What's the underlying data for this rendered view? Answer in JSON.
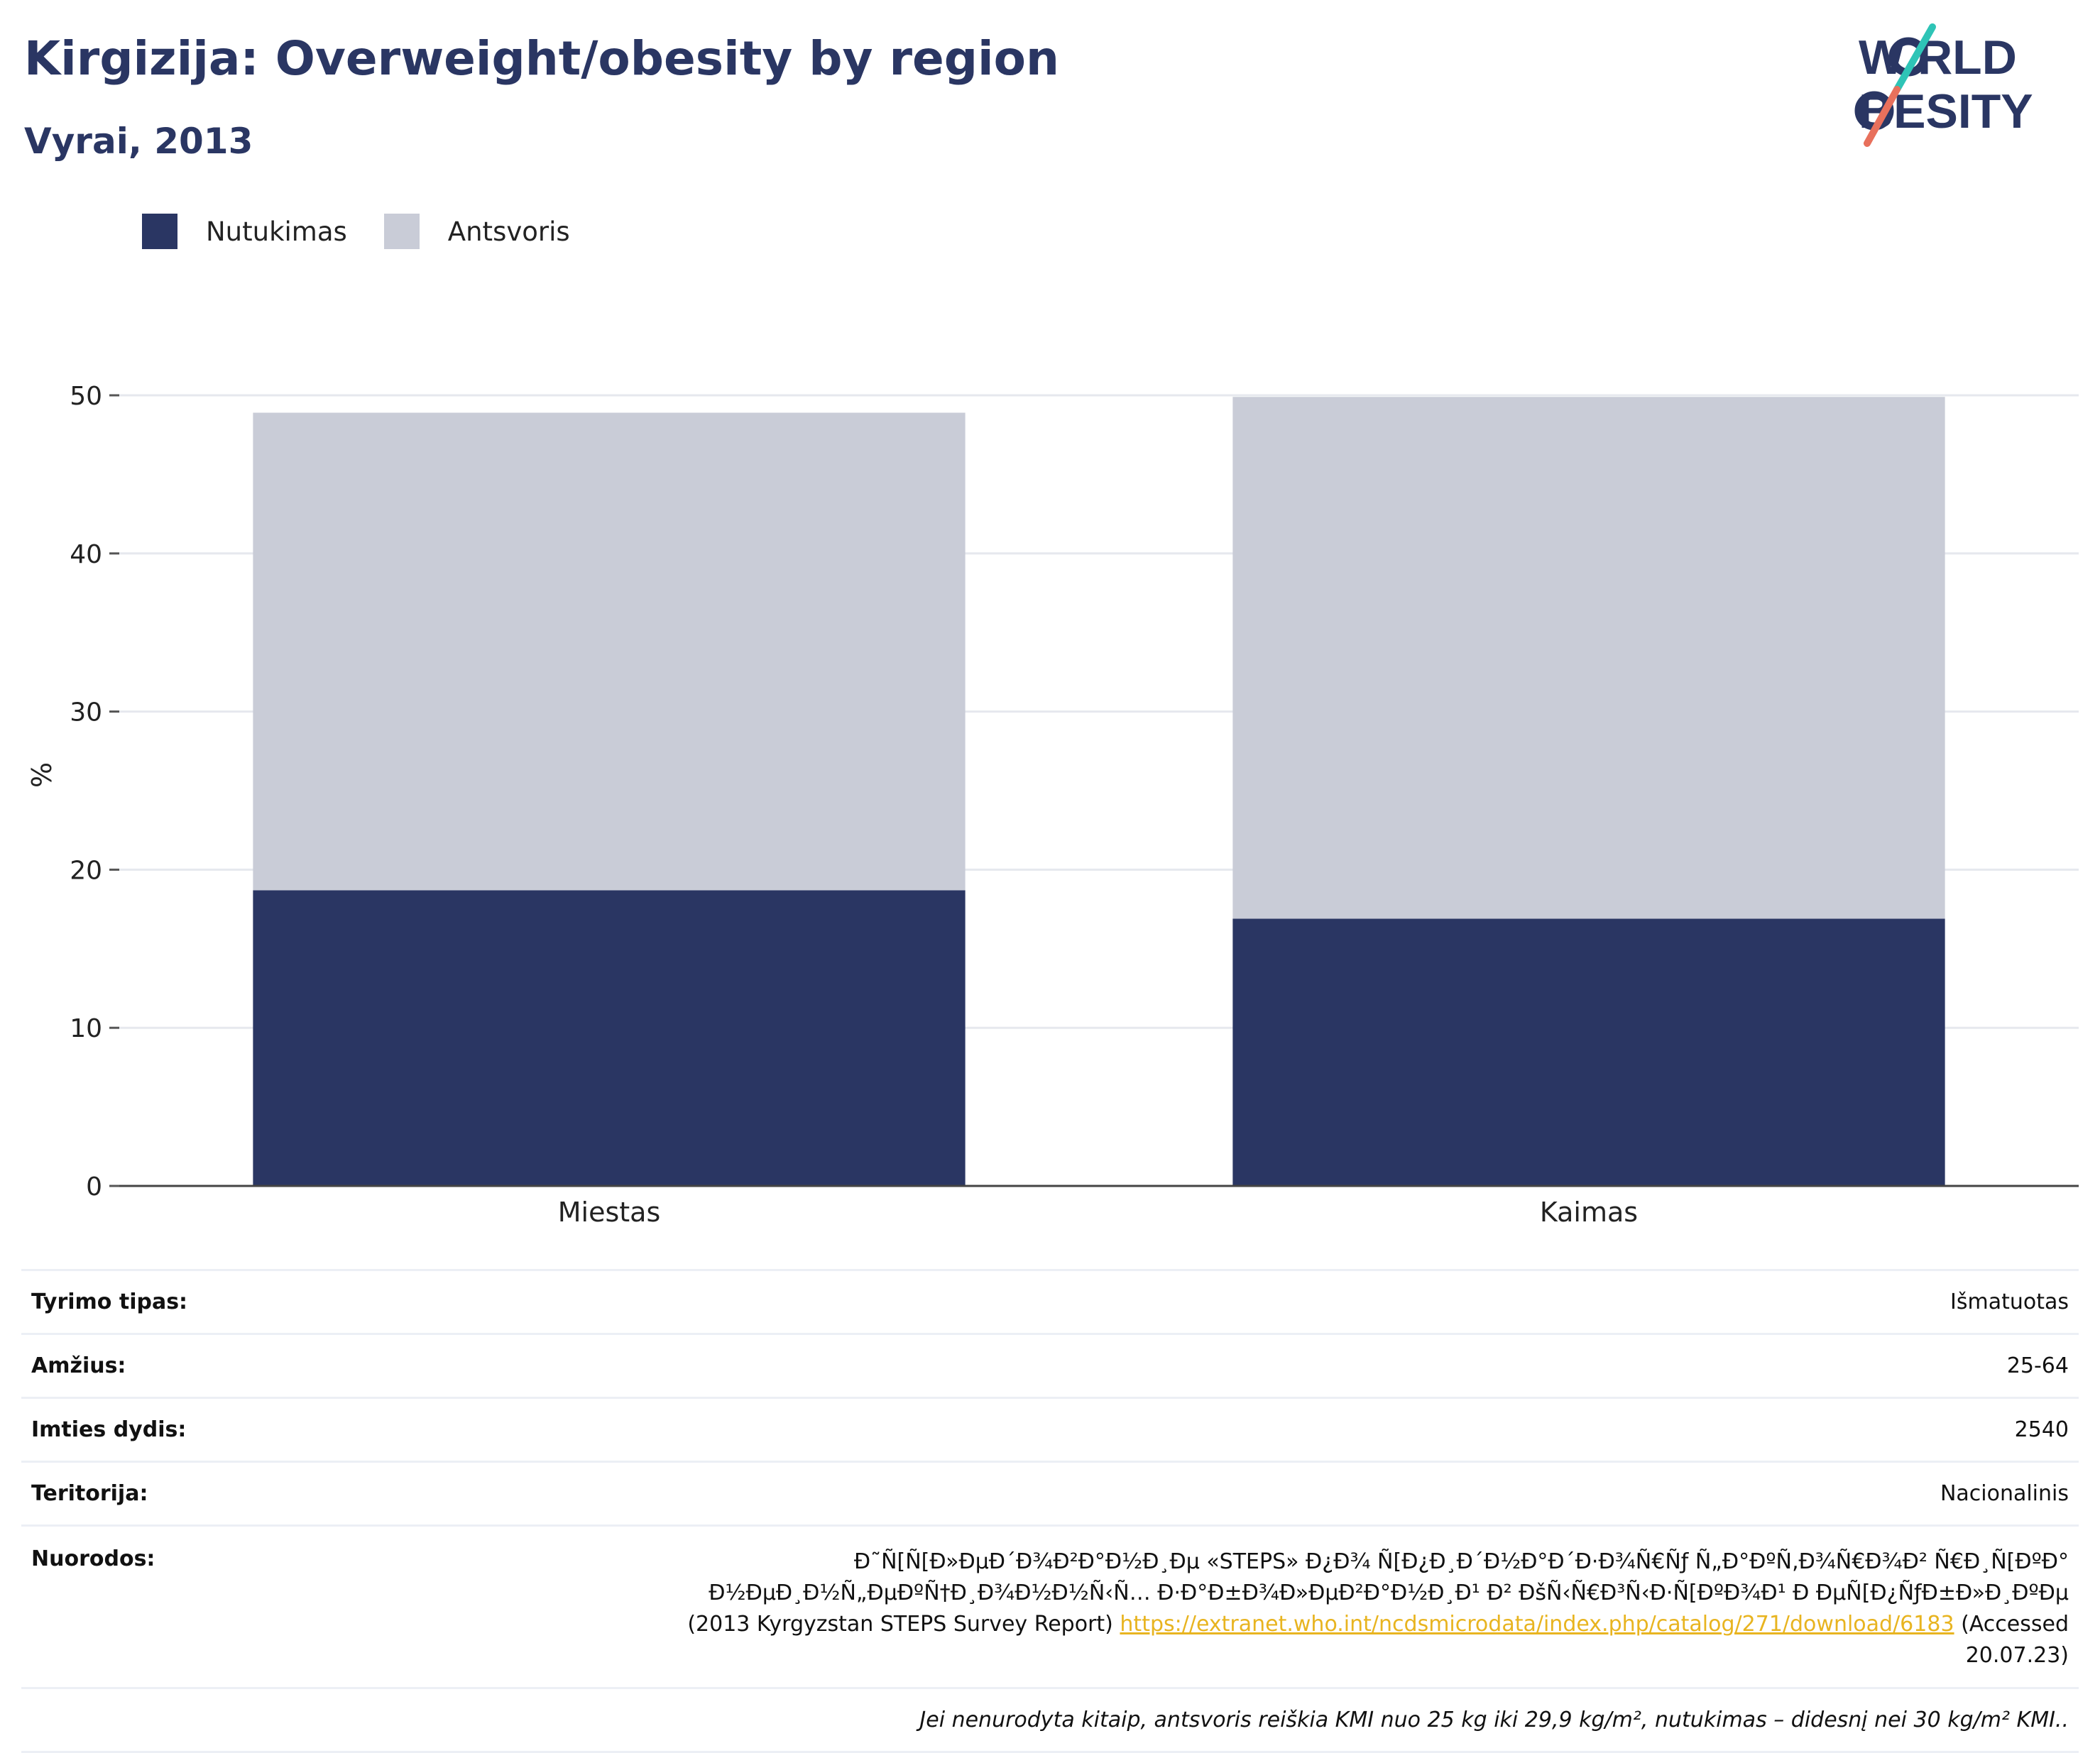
{
  "header": {
    "title": "Kirgizija: Overweight/obesity by region",
    "subtitle": "Vyrai, 2013",
    "logo_top": "W RLD",
    "logo_bottom": "BESITY"
  },
  "legend": {
    "items": [
      {
        "label": "Nutukimas",
        "color": "#2a3663"
      },
      {
        "label": "Antsvoris",
        "color": "#c9ccd7"
      }
    ]
  },
  "chart_data": {
    "type": "bar",
    "stacked": true,
    "categories": [
      "Miestas",
      "Kaimas"
    ],
    "series": [
      {
        "name": "Nutukimas",
        "values": [
          18.7,
          16.9
        ],
        "color": "#2a3663"
      },
      {
        "name": "Antsvoris",
        "values": [
          30.2,
          33.0
        ],
        "color": "#c9ccd7"
      }
    ],
    "ylabel": "%",
    "ylim": [
      0,
      50
    ],
    "yticks": [
      0,
      10,
      20,
      30,
      40,
      50
    ],
    "grid": true,
    "legend_position": "top-left"
  },
  "info": {
    "rows": [
      {
        "key": "Tyrimo tipas:",
        "value": "Išmatuotas"
      },
      {
        "key": "Amžius:",
        "value": "25-64"
      },
      {
        "key": "Imties dydis:",
        "value": "2540"
      },
      {
        "key": "Teritorija:",
        "value": "Nacionalinis"
      }
    ],
    "refs": {
      "key": "Nuorodos:",
      "line1": "Ð˜Ñ[Ñ[Ð»ÐµÐ´Ð¾Ð²Ð°Ð½Ð¸Ðµ «STEPS» Ð¿Ð¾ Ñ[Ð¿Ð¸Ð´Ð½Ð°Ð´Ð·Ð¾Ñ€Ñƒ Ñ„Ð°ÐºÑ‚Ð¾Ñ€Ð¾Ð² Ñ€Ð¸Ñ[ÐºÐ°",
      "line2": "Ð½ÐµÐ¸Ð½Ñ„ÐµÐºÑ†Ð¸Ð¾Ð½Ð½Ñ‹Ñ… Ð·Ð°Ð±Ð¾Ð»ÐµÐ²Ð°Ð½Ð¸Ð¹ Ð² ÐšÑ‹Ñ€Ð³Ñ‹Ð·Ñ[ÐºÐ¾Ð¹ Ð ÐµÑ[Ð¿ÑƒÐ±Ð»Ð¸ÐºÐµ",
      "line3_pre": "(2013 Kyrgyzstan STEPS Survey Report)",
      "link": "https://extranet.who.int/ncdsmicrodata/index.php/catalog/271/download/6183",
      "line3_post": "(Accessed",
      "line4": "20.07.23)"
    },
    "note": "Jei nenurodyta kitaip, antsvoris reiškia KMI nuo 25 kg iki 29,9 kg/m², nutukimas – didesnį nei 30 kg/m² KMI.."
  }
}
